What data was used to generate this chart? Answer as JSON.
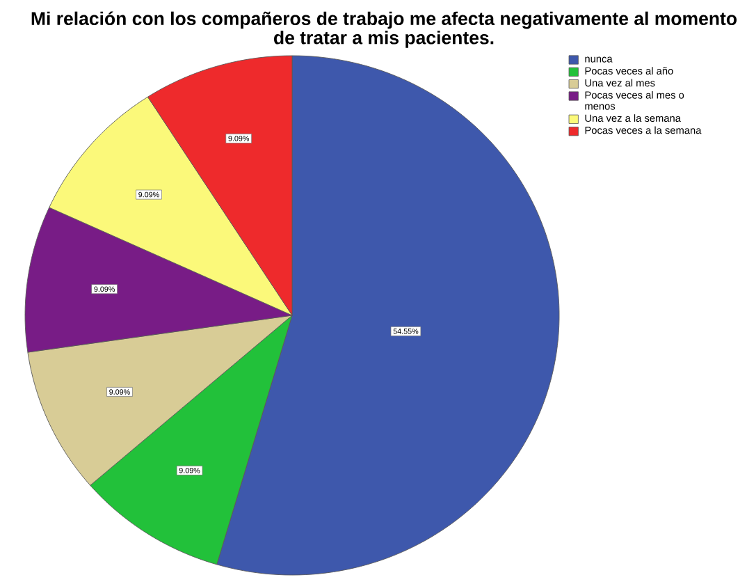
{
  "chart_data": {
    "type": "pie",
    "title": "Mi relación con los compañeros de trabajo me afecta negativamente al momento de tratar a mis pacientes.",
    "categories": [
      "nunca",
      "Pocas veces al año",
      "Una vez al mes",
      "Pocas veces al mes o menos",
      "Una vez a la semana",
      "Pocas veces a la semana"
    ],
    "values": [
      54.55,
      9.09,
      9.09,
      9.09,
      9.09,
      9.09
    ],
    "colors": [
      "#3e58ac",
      "#22c13a",
      "#d8cc96",
      "#781c86",
      "#fbf97a",
      "#ee2a2c"
    ],
    "value_labels": [
      "54.55%",
      "9.09%",
      "9.09%",
      "9.09%",
      "9.09%",
      "9.09%"
    ],
    "legend": "top right"
  }
}
